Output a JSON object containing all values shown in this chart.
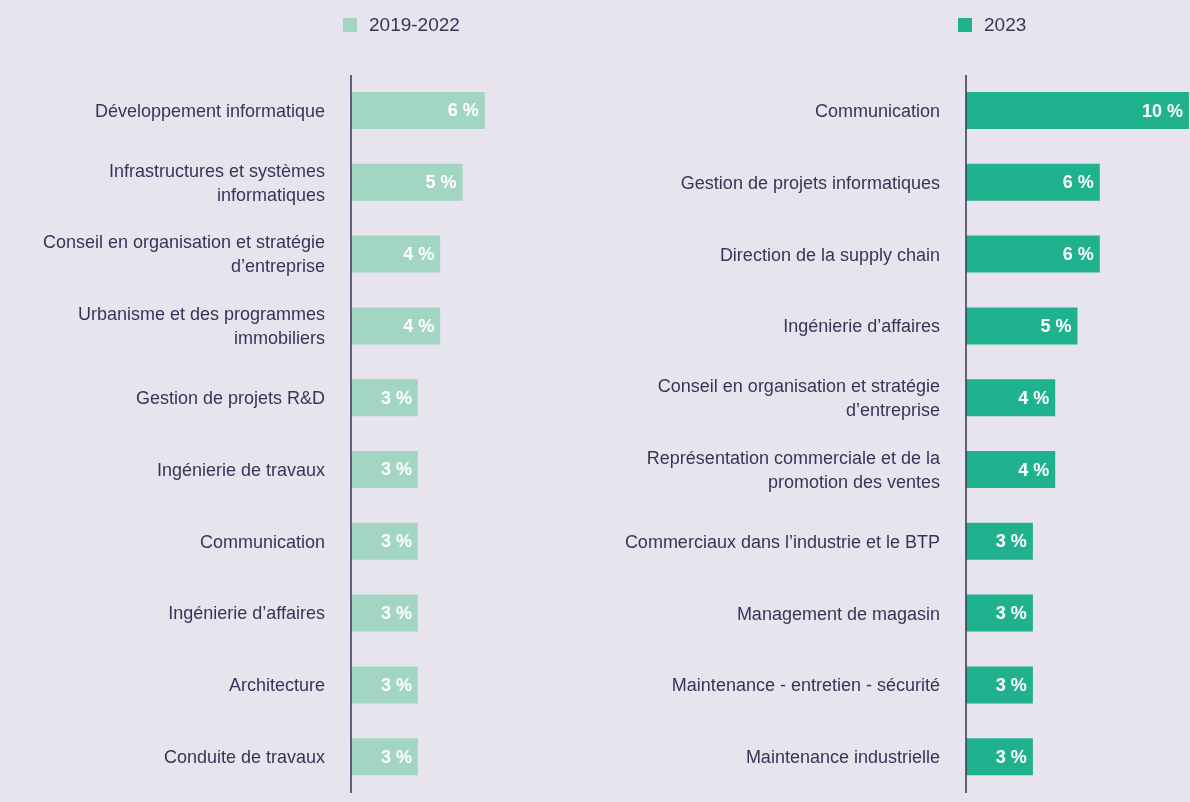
{
  "chart_data": [
    {
      "type": "bar",
      "orientation": "horizontal",
      "legend": "top",
      "categories": [
        "Développement informatique",
        "Infrastructures et systèmes informatiques",
        "Conseil en organisation et stratégie d’entreprise",
        "Urbanisme et des programmes immobiliers",
        "Gestion de projets R&D",
        "Ingénierie de travaux",
        "Communication",
        "Ingénierie d’affaires",
        "Architecture",
        "Conduite de travaux"
      ],
      "series": [
        {
          "name": "2019-2022",
          "color": "#a3d5c3",
          "values": [
            6,
            5,
            4,
            4,
            3,
            3,
            3,
            3,
            3,
            3
          ],
          "value_labels": [
            "6 %",
            "5 %",
            "4 %",
            "4 %",
            "3 %",
            "3 %",
            "3 %",
            "3 %",
            "3 %",
            "3 %"
          ]
        }
      ]
    },
    {
      "type": "bar",
      "orientation": "horizontal",
      "legend": "top",
      "categories": [
        "Communication",
        "Gestion de projets informatiques",
        "Direction de la supply chain",
        "Ingénierie d’affaires",
        "Conseil en organisation et stratégie d’entreprise",
        "Représentation commerciale et de la promotion des ventes",
        "Commerciaux dans l’industrie et le BTP",
        "Management de magasin",
        "Maintenance - entretien - sécurité",
        "Maintenance industrielle"
      ],
      "series": [
        {
          "name": "2023",
          "color": "#20b18e",
          "values": [
            10,
            6,
            6,
            5,
            4,
            4,
            3,
            3,
            3,
            3
          ],
          "value_labels": [
            "10 %",
            "6 %",
            "6 %",
            "5 %",
            "4 %",
            "4 %",
            "3 %",
            "3 %",
            "3 %",
            "3 %"
          ]
        }
      ]
    }
  ]
}
